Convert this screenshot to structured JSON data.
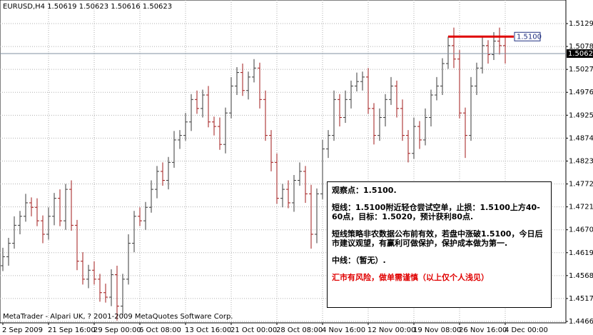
{
  "chart_data": {
    "type": "ohlc",
    "title": "EURUSD,H4 1.50619 1.50623 1.50616 1.50623",
    "footer": "MetaTrader - Alpari UK, ? 2001-2009 MetaQuotes Software Corp.",
    "categories": [
      "2 Sep 2009",
      null,
      null,
      null,
      null,
      null,
      null,
      null,
      "21 Sep 16:00",
      null,
      null,
      null,
      null,
      null,
      null,
      null,
      "29 Sep 00:00",
      null,
      null,
      null,
      null,
      null,
      null,
      null,
      "6 Oct 08:00",
      null,
      null,
      null,
      null,
      null,
      null,
      null,
      "13 Oct 16:00",
      null,
      null,
      null,
      null,
      null,
      null,
      null,
      "21 Oct 00:00",
      null,
      null,
      null,
      null,
      null,
      null,
      null,
      "28 Oct 08:00",
      null,
      null,
      null,
      null,
      null,
      null,
      null,
      "4 Nov 16:00",
      null,
      null,
      null,
      null,
      null,
      null,
      null,
      "12 Nov 00:00",
      null,
      null,
      null,
      null,
      null,
      null,
      null,
      "19 Nov 08:00",
      null,
      null,
      null,
      null,
      null,
      null,
      null,
      "26 Nov 16:00",
      null,
      null,
      null,
      null,
      null,
      null,
      null,
      "4 Dec 00:00"
    ],
    "open": [
      1.459,
      1.461,
      1.464,
      1.468,
      1.47,
      1.473,
      1.472,
      1.469,
      1.466,
      1.47,
      1.474,
      1.469,
      1.476,
      1.468,
      1.46,
      1.456,
      1.458,
      1.456,
      1.453,
      1.452,
      1.457,
      1.45,
      1.456,
      1.464,
      1.47,
      1.469,
      1.472,
      1.476,
      1.48,
      1.478,
      1.482,
      1.487,
      1.488,
      1.491,
      1.496,
      1.494,
      1.497,
      1.491,
      1.49,
      1.486,
      1.493,
      1.499,
      1.502,
      1.498,
      1.501,
      1.503,
      1.496,
      1.488,
      1.482,
      1.474,
      1.476,
      1.473,
      1.478,
      1.48,
      1.475,
      1.466,
      1.475,
      1.485,
      1.488,
      1.496,
      1.492,
      1.496,
      1.499,
      1.5,
      1.501,
      1.494,
      1.488,
      1.492,
      1.496,
      1.499,
      1.494,
      1.488,
      1.484,
      1.49,
      1.487,
      1.492,
      1.497,
      1.499,
      1.504,
      1.508,
      1.505,
      1.493,
      1.488,
      1.499,
      1.503,
      1.508,
      1.506,
      1.509,
      1.508
    ],
    "high": [
      1.463,
      1.4652,
      1.47,
      1.4712,
      1.475,
      1.4742,
      1.474,
      1.4702,
      1.472,
      1.4752,
      1.476,
      1.4772,
      1.478,
      1.4692,
      1.462,
      1.4592,
      1.46,
      1.4572,
      1.455,
      1.4582,
      1.459,
      1.4572,
      1.466,
      1.4712,
      1.472,
      1.4732,
      1.478,
      1.4812,
      1.482,
      1.4832,
      1.489,
      1.4892,
      1.493,
      1.4972,
      1.498,
      1.4982,
      1.499,
      1.4922,
      1.492,
      1.4942,
      1.501,
      1.5032,
      1.504,
      1.5022,
      1.505,
      1.5042,
      1.498,
      1.4892,
      1.484,
      1.4772,
      1.478,
      1.4792,
      1.482,
      1.4812,
      1.477,
      1.4762,
      1.487,
      1.4892,
      1.498,
      1.4972,
      1.498,
      1.5002,
      1.502,
      1.5022,
      1.503,
      1.4952,
      1.494,
      1.4972,
      1.501,
      1.5002,
      1.496,
      1.4892,
      1.492,
      1.4912,
      1.494,
      1.4982,
      1.501,
      1.5052,
      1.51,
      1.512,
      1.507,
      1.4942,
      1.501,
      1.5042,
      1.51,
      1.5092,
      1.511,
      1.512,
      1.51
    ],
    "low": [
      1.4578,
      1.459,
      1.4628,
      1.466,
      1.4688,
      1.47,
      1.4678,
      1.464,
      1.4648,
      1.468,
      1.4678,
      1.467,
      1.4668,
      1.458,
      1.4548,
      1.454,
      1.4548,
      1.451,
      1.4508,
      1.45,
      1.4468,
      1.448,
      1.4548,
      1.462,
      1.4678,
      1.467,
      1.4708,
      1.474,
      1.4768,
      1.476,
      1.4808,
      1.485,
      1.4868,
      1.489,
      1.4928,
      1.492,
      1.4898,
      1.488,
      1.4848,
      1.484,
      1.4918,
      1.497,
      1.4968,
      1.496,
      1.4998,
      1.494,
      1.4868,
      1.48,
      1.4728,
      1.472,
      1.4718,
      1.471,
      1.4768,
      1.473,
      1.4628,
      1.464,
      1.4738,
      1.483,
      1.4868,
      1.49,
      1.4908,
      1.494,
      1.4978,
      1.498,
      1.4928,
      1.486,
      1.4868,
      1.49,
      1.4948,
      1.492,
      1.4868,
      1.482,
      1.4828,
      1.485,
      1.4858,
      1.49,
      1.4958,
      1.497,
      1.5028,
      1.503,
      1.4918,
      1.483,
      1.4868,
      1.497,
      1.5018,
      1.504,
      1.5048,
      1.506,
      1.504
    ],
    "close": [
      1.461,
      1.464,
      1.468,
      1.47,
      1.473,
      1.472,
      1.469,
      1.466,
      1.47,
      1.474,
      1.469,
      1.476,
      1.468,
      1.46,
      1.456,
      1.458,
      1.456,
      1.453,
      1.452,
      1.457,
      1.45,
      1.456,
      1.464,
      1.47,
      1.469,
      1.472,
      1.476,
      1.48,
      1.478,
      1.482,
      1.487,
      1.488,
      1.491,
      1.496,
      1.494,
      1.497,
      1.491,
      1.49,
      1.486,
      1.493,
      1.499,
      1.502,
      1.498,
      1.501,
      1.503,
      1.496,
      1.488,
      1.482,
      1.474,
      1.476,
      1.473,
      1.478,
      1.48,
      1.475,
      1.466,
      1.475,
      1.485,
      1.488,
      1.496,
      1.492,
      1.496,
      1.499,
      1.5,
      1.501,
      1.494,
      1.488,
      1.492,
      1.496,
      1.499,
      1.494,
      1.488,
      1.484,
      1.49,
      1.487,
      1.492,
      1.497,
      1.499,
      1.504,
      1.508,
      1.505,
      1.493,
      1.488,
      1.499,
      1.503,
      1.508,
      1.506,
      1.509,
      1.508,
      1.50623
    ],
    "up_color": "#3a3a3a",
    "down_color": "#a01818",
    "ylim": [
      1.44628,
      1.51815
    ],
    "yticks": [
      {
        "value": 1.5129,
        "label": "1.51290"
      },
      {
        "value": 1.5078,
        "label": "1.50780"
      },
      {
        "value": 1.5027,
        "label": "1.50270"
      },
      {
        "value": 1.4976,
        "label": "1.49760"
      },
      {
        "value": 1.4925,
        "label": "1.49250"
      },
      {
        "value": 1.4874,
        "label": "1.48740"
      },
      {
        "value": 1.4823,
        "label": "1.48230"
      },
      {
        "value": 1.4772,
        "label": "1.47720"
      },
      {
        "value": 1.4721,
        "label": "1.47210"
      },
      {
        "value": 1.467,
        "label": "1.46700"
      },
      {
        "value": 1.4619,
        "label": "1.46190"
      },
      {
        "value": 1.4568,
        "label": "1.45680"
      },
      {
        "value": 1.4517,
        "label": "1.45170"
      },
      {
        "value": 1.4466,
        "label": "1.44660"
      }
    ],
    "grid": true,
    "current_price": 1.50623,
    "level": {
      "value": 1.51,
      "label": "1.5100"
    },
    "level_color": "#e00000",
    "annotations": [
      {
        "text": "观察点：1.5100.",
        "color": "#000000"
      },
      {
        "text": "短线：1.5100附近轻仓尝试空单，止损：1.5100上方40-60点，目标：1.5020，预计获利80点.",
        "color": "#000000"
      },
      {
        "text": "短线策略非农数据公布前有效，若盘中涨破1.5100，今日后市建议观望，有赢利可做保护，保护成本做为第一.",
        "color": "#000000"
      },
      {
        "text": "中线：（暂无）.",
        "color": "#000000"
      },
      {
        "text": "汇市有风险，做单需谨慎（以上仅个人浅见）",
        "color": "#e00000"
      }
    ]
  }
}
